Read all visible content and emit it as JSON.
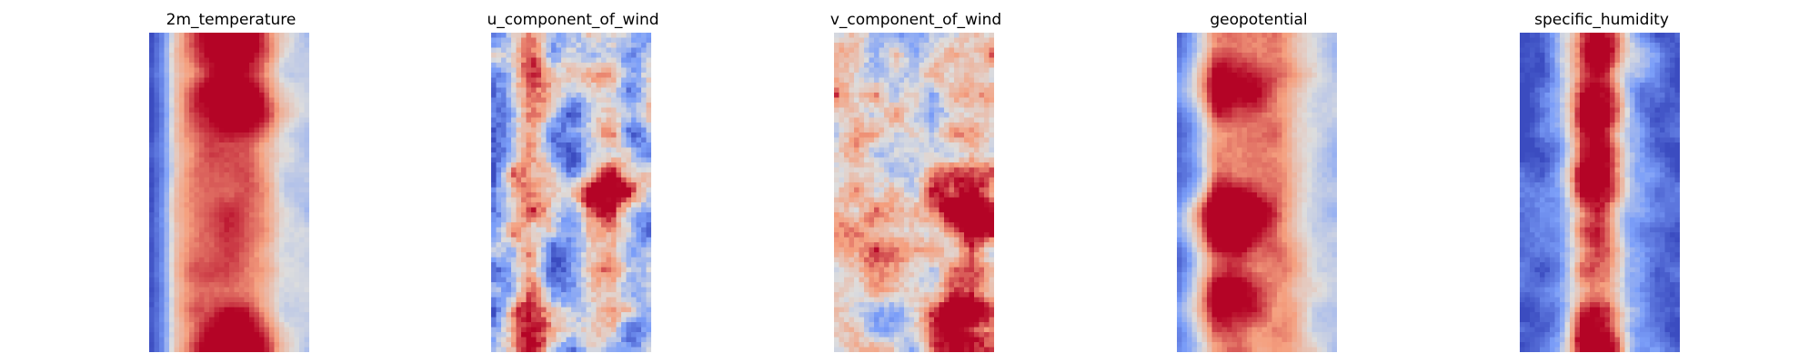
{
  "chart_data": [
    {
      "type": "heatmap",
      "title": "2m_temperature",
      "colormap": "coolwarm",
      "axes": "off",
      "grid": false,
      "grid_size": [
        32,
        64
      ],
      "field": {
        "profile": [
          -0.9,
          -0.55,
          0.25,
          0.55,
          0.72,
          0.78,
          0.8,
          0.78,
          0.72,
          0.55,
          0.3,
          -0.05,
          -0.1,
          -0.15
        ],
        "noise": 0.1,
        "seed": 11,
        "hot_spots": [
          [
            0.55,
            0.01
          ],
          [
            0.6,
            0.22
          ],
          [
            0.58,
            0.99
          ]
        ]
      }
    },
    {
      "type": "heatmap",
      "title": "u_component_of_wind",
      "colormap": "coolwarm",
      "axes": "off",
      "grid": false,
      "grid_size": [
        32,
        64
      ],
      "field": {
        "profile": [
          -0.5,
          -0.2,
          0.35,
          0.5,
          0.1,
          -0.5,
          -0.6,
          -0.55,
          -0.2,
          0.1,
          0.25,
          -0.2,
          -0.45,
          -0.3
        ],
        "noise": 0.45,
        "seed": 23,
        "hot_spots": [
          [
            0.72,
            0.47
          ],
          [
            0.75,
            0.52
          ],
          [
            0.28,
            0.98
          ],
          [
            0.33,
            0.12
          ]
        ]
      }
    },
    {
      "type": "heatmap",
      "title": "v_component_of_wind",
      "colormap": "coolwarm",
      "axes": "off",
      "grid": false,
      "grid_size": [
        32,
        64
      ],
      "field": {
        "profile": [
          0.25,
          0.2,
          0.12,
          0.08,
          0.05,
          0.05,
          0.05,
          0.05,
          0.08,
          0.12,
          0.15,
          0.2,
          0.22,
          0.25
        ],
        "noise": 0.4,
        "seed": 37,
        "hot_spots": [
          [
            0.82,
            0.52
          ],
          [
            0.85,
            0.58
          ],
          [
            0.25,
            0.62
          ],
          [
            0.8,
            0.88
          ],
          [
            0.88,
            0.96
          ]
        ]
      }
    },
    {
      "type": "heatmap",
      "title": "geopotential",
      "colormap": "coolwarm",
      "axes": "off",
      "grid": false,
      "grid_size": [
        32,
        64
      ],
      "field": {
        "profile": [
          -0.75,
          -0.55,
          -0.1,
          0.5,
          0.6,
          0.62,
          0.62,
          0.6,
          0.58,
          0.5,
          0.25,
          0.05,
          -0.1,
          -0.2
        ],
        "noise": 0.12,
        "seed": 51,
        "hot_spots": [
          [
            0.27,
            0.57
          ],
          [
            0.3,
            0.62
          ],
          [
            0.27,
            0.17
          ],
          [
            0.25,
            0.85
          ]
        ]
      }
    },
    {
      "type": "heatmap",
      "title": "specific_humidity",
      "colormap": "coolwarm",
      "axes": "off",
      "grid": false,
      "grid_size": [
        32,
        64
      ],
      "field": {
        "profile": [
          -0.9,
          -0.85,
          -0.75,
          -0.55,
          -0.1,
          0.55,
          0.75,
          0.65,
          0.15,
          -0.45,
          -0.6,
          -0.75,
          -0.85,
          -0.9
        ],
        "noise": 0.18,
        "seed": 67,
        "hot_spots": [
          [
            0.52,
            0.05
          ],
          [
            0.52,
            0.45
          ],
          [
            0.5,
            0.98
          ],
          [
            0.45,
            0.26
          ]
        ]
      }
    }
  ]
}
